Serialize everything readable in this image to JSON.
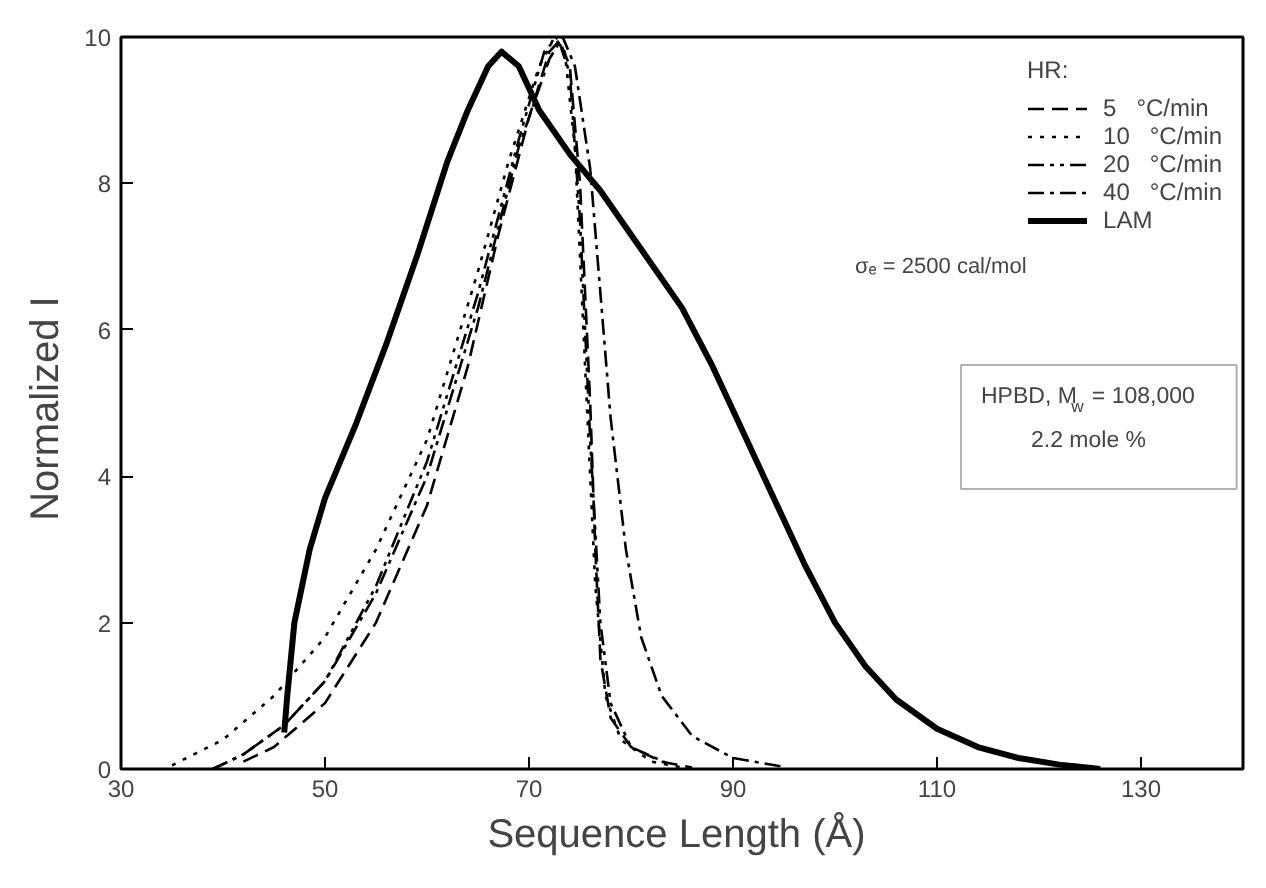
{
  "chart_data": {
    "type": "line",
    "xlabel": "Sequence Length  (Å)",
    "ylabel": "Normalized  I",
    "xlim": [
      30,
      140
    ],
    "ylim": [
      0,
      10
    ],
    "xticks": [
      30,
      50,
      70,
      90,
      110,
      130
    ],
    "yticks": [
      0,
      2,
      4,
      6,
      8,
      10
    ],
    "grid": false,
    "legend": "top right",
    "legend_title": "HR:",
    "annotations": [
      "σₑ = 2500 cal/mol",
      "HPBD, M$_{w}$ = 108,000",
      "2.2 mole %"
    ],
    "series": [
      {
        "name": "5   °C/min",
        "color": "#000000",
        "line_style": "dashed",
        "x": [
          42,
          45,
          50,
          55,
          60,
          64,
          67,
          70,
          72,
          73,
          74,
          75,
          76,
          76.5,
          77,
          78,
          80,
          83,
          86
        ],
        "values": [
          0.1,
          0.3,
          0.9,
          2.0,
          3.6,
          5.5,
          7.3,
          8.9,
          9.8,
          9.95,
          9.6,
          8.0,
          5.0,
          3.0,
          1.5,
          0.7,
          0.3,
          0.1,
          0.02
        ]
      },
      {
        "name": "10   °C/min",
        "color": "#000000",
        "line_style": "dotted",
        "x": [
          35,
          40,
          45,
          50,
          55,
          60,
          65,
          68,
          71,
          72.5,
          73.5,
          74.5,
          75.5,
          76.5,
          77.5,
          79,
          82,
          85
        ],
        "values": [
          0.05,
          0.4,
          1.0,
          1.8,
          3.0,
          4.5,
          6.8,
          8.3,
          9.6,
          10.0,
          9.8,
          8.5,
          5.5,
          2.5,
          1.0,
          0.4,
          0.1,
          0.02
        ]
      },
      {
        "name": "20   °C/min",
        "color": "#000000",
        "line_style": "dashdotdot",
        "x": [
          39,
          42,
          46,
          50,
          55,
          60,
          65,
          69,
          71.5,
          72.8,
          74,
          75,
          76,
          77,
          78,
          80,
          84
        ],
        "values": [
          0,
          0.2,
          0.6,
          1.2,
          2.5,
          4.2,
          6.5,
          8.6,
          9.8,
          10.0,
          9.5,
          7.5,
          4.5,
          2.0,
          0.9,
          0.3,
          0.05
        ]
      },
      {
        "name": "40   °C/min",
        "color": "#000000",
        "line_style": "dashdot",
        "x": [
          39,
          42,
          46,
          50,
          55,
          60,
          65,
          69,
          72,
          73.3,
          74.5,
          76,
          77,
          78,
          79.5,
          81,
          83,
          86,
          90,
          95
        ],
        "values": [
          0,
          0.2,
          0.6,
          1.2,
          2.4,
          4.0,
          6.3,
          8.5,
          9.7,
          10.0,
          9.6,
          8.2,
          6.5,
          4.8,
          3.0,
          1.8,
          1.0,
          0.45,
          0.15,
          0.03
        ]
      },
      {
        "name": "LAM",
        "color": "#000000",
        "line_style": "solid",
        "x": [
          46,
          46.3,
          47,
          48.5,
          50,
          53,
          56,
          59,
          62,
          64,
          66,
          67.3,
          69,
          71,
          74,
          77,
          81,
          85,
          88,
          91,
          94,
          97,
          100,
          103,
          106,
          110,
          114,
          118,
          122,
          126
        ],
        "values": [
          0.5,
          1.0,
          2.0,
          3.0,
          3.7,
          4.7,
          5.8,
          7.0,
          8.3,
          9.0,
          9.6,
          9.8,
          9.6,
          9.0,
          8.4,
          7.9,
          7.1,
          6.3,
          5.5,
          4.6,
          3.7,
          2.8,
          2.0,
          1.4,
          0.95,
          0.55,
          0.3,
          0.15,
          0.06,
          0
        ]
      }
    ]
  }
}
